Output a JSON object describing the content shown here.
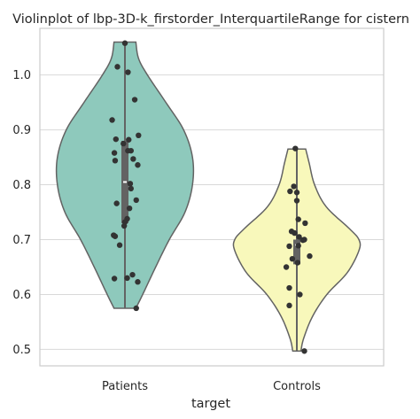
{
  "chart_data": {
    "type": "violin",
    "title": "Violinplot of lbp-3D-k_firstorder_InterquartileRange for cistern",
    "xlabel": "target",
    "ylabel": "",
    "categories": [
      "Patients",
      "Controls"
    ],
    "ylim": [
      0.47,
      1.085
    ],
    "yticks": [
      0.5,
      0.6,
      0.7,
      0.8,
      0.9,
      1.0
    ],
    "ytick_labels": [
      "0.5",
      "0.6",
      "0.7",
      "0.8",
      "0.9",
      "1.0"
    ],
    "grid": true,
    "series": [
      {
        "category": "Patients",
        "color": "#8ec9bc",
        "min": 0.575,
        "max": 1.06,
        "q1": 0.73,
        "median": 0.805,
        "q3": 0.88,
        "density": [
          [
            0.575,
            0.16
          ],
          [
            0.6,
            0.26
          ],
          [
            0.65,
            0.45
          ],
          [
            0.7,
            0.65
          ],
          [
            0.75,
            0.88
          ],
          [
            0.8,
            0.99
          ],
          [
            0.85,
            0.99
          ],
          [
            0.9,
            0.86
          ],
          [
            0.95,
            0.6
          ],
          [
            1.0,
            0.33
          ],
          [
            1.03,
            0.2
          ],
          [
            1.06,
            0.16
          ]
        ],
        "points": [
          [
            0.0,
            1.058
          ],
          [
            -0.1,
            1.015
          ],
          [
            0.04,
            1.005
          ],
          [
            0.13,
            0.955
          ],
          [
            -0.17,
            0.918
          ],
          [
            0.18,
            0.89
          ],
          [
            -0.12,
            0.883
          ],
          [
            0.05,
            0.882
          ],
          [
            -0.02,
            0.875
          ],
          [
            0.04,
            0.862
          ],
          [
            -0.14,
            0.858
          ],
          [
            0.08,
            0.862
          ],
          [
            0.11,
            0.847
          ],
          [
            -0.13,
            0.844
          ],
          [
            0.17,
            0.836
          ],
          [
            0.07,
            0.802
          ],
          [
            0.08,
            0.793
          ],
          [
            -0.11,
            0.766
          ],
          [
            0.15,
            0.772
          ],
          [
            0.06,
            0.757
          ],
          [
            0.03,
            0.738
          ],
          [
            0.0,
            0.732
          ],
          [
            -0.01,
            0.725
          ],
          [
            -0.15,
            0.708
          ],
          [
            -0.13,
            0.706
          ],
          [
            -0.07,
            0.69
          ],
          [
            0.1,
            0.636
          ],
          [
            -0.14,
            0.629
          ],
          [
            0.03,
            0.63
          ],
          [
            0.17,
            0.623
          ],
          [
            0.15,
            0.575
          ]
        ]
      },
      {
        "category": "Controls",
        "color": "#f8f8bb",
        "min": 0.497,
        "max": 0.865,
        "q1": 0.655,
        "median": 0.69,
        "q3": 0.7,
        "density": [
          [
            0.497,
            0.06
          ],
          [
            0.52,
            0.1
          ],
          [
            0.56,
            0.23
          ],
          [
            0.6,
            0.44
          ],
          [
            0.64,
            0.74
          ],
          [
            0.68,
            0.91
          ],
          [
            0.7,
            0.91
          ],
          [
            0.72,
            0.77
          ],
          [
            0.76,
            0.43
          ],
          [
            0.8,
            0.26
          ],
          [
            0.84,
            0.18
          ],
          [
            0.865,
            0.13
          ]
        ],
        "points": [
          [
            -0.02,
            0.866
          ],
          [
            -0.04,
            0.797
          ],
          [
            -0.09,
            0.788
          ],
          [
            0.0,
            0.786
          ],
          [
            0.0,
            0.771
          ],
          [
            0.02,
            0.737
          ],
          [
            0.11,
            0.73
          ],
          [
            -0.07,
            0.715
          ],
          [
            -0.03,
            0.712
          ],
          [
            0.03,
            0.705
          ],
          [
            0.1,
            0.7
          ],
          [
            0.08,
            0.699
          ],
          [
            0.02,
            0.689
          ],
          [
            -0.1,
            0.688
          ],
          [
            0.17,
            0.67
          ],
          [
            -0.06,
            0.665
          ],
          [
            0.01,
            0.658
          ],
          [
            -0.14,
            0.65
          ],
          [
            -0.1,
            0.612
          ],
          [
            0.04,
            0.6
          ],
          [
            -0.1,
            0.58
          ],
          [
            0.1,
            0.497
          ]
        ]
      }
    ]
  }
}
